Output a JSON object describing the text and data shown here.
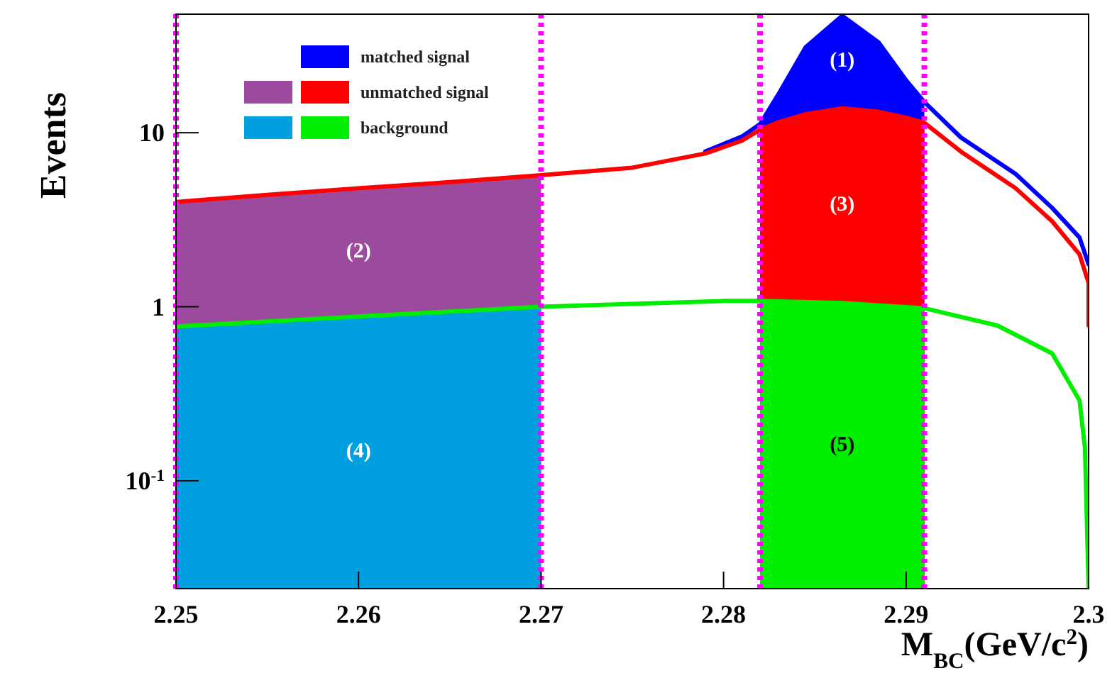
{
  "chart_data": {
    "type": "line",
    "xlabel": "M$_{BC}$(GeV/c$^{2}$)",
    "ylabel": "Events",
    "log": "y",
    "xlim": [
      2.25,
      2.3
    ],
    "ylim": [
      0.024,
      48
    ],
    "xticks": [
      2.25,
      2.26,
      2.27,
      2.28,
      2.29,
      2.3
    ],
    "yticks": [
      {
        "value": 0.1,
        "label": "10$^{-1}$"
      },
      1,
      10
    ],
    "legend": "top left",
    "series": [
      {
        "type": "area",
        "name": "matched signal",
        "color": "#0000ff",
        "x": [
          2.282,
          2.283,
          2.2845,
          2.2865,
          2.2885,
          2.29,
          2.291
        ],
        "values": [
          11.2,
          16.6,
          31,
          47,
          33,
          20,
          15
        ]
      },
      {
        "type": "area",
        "color": "#9b4a9e",
        "x": [
          2.25,
          2.255,
          2.26,
          2.265,
          2.27
        ],
        "values": [
          4.0,
          4.4,
          4.8,
          5.2,
          5.7
        ]
      },
      {
        "type": "area",
        "name": "unmatched signal",
        "color": "#ff0000",
        "x": [
          2.282,
          2.283,
          2.2845,
          2.2865,
          2.2885,
          2.29,
          2.291
        ],
        "values": [
          10.4,
          11.5,
          12.8,
          13.8,
          13.2,
          12.2,
          11.4
        ]
      },
      {
        "type": "area",
        "color": "#00a0e0",
        "x": [
          2.25,
          2.255,
          2.26,
          2.265,
          2.27
        ],
        "values": [
          0.77,
          0.82,
          0.88,
          0.94,
          1.0
        ]
      },
      {
        "type": "area",
        "name": "background",
        "color": "#00ee00",
        "x": [
          2.282,
          2.283,
          2.2845,
          2.2865,
          2.2885,
          2.29,
          2.291
        ],
        "values": [
          1.08,
          1.08,
          1.07,
          1.05,
          1.02,
          1.0,
          0.98
        ]
      },
      {
        "color": "#0000ff",
        "x": [
          2.279,
          2.281,
          2.282,
          2.283,
          2.2845,
          2.2865,
          2.2885,
          2.29,
          2.291,
          2.293,
          2.296,
          2.298,
          2.2995,
          2.3
        ],
        "values": [
          7.8,
          9.5,
          11.2,
          16.6,
          31,
          47,
          33,
          20,
          15,
          9.4,
          5.8,
          3.7,
          2.5,
          1.75
        ]
      },
      {
        "color": "#ff0000",
        "x": [
          2.25,
          2.255,
          2.26,
          2.265,
          2.27,
          2.275,
          2.279,
          2.281,
          2.282,
          2.283,
          2.2845,
          2.2865,
          2.2885,
          2.29,
          2.291,
          2.293,
          2.296,
          2.298,
          2.2995,
          2.3,
          2.3
        ],
        "values": [
          4.0,
          4.4,
          4.8,
          5.2,
          5.7,
          6.3,
          7.6,
          9.0,
          10.4,
          11.5,
          12.8,
          13.8,
          13.2,
          12.2,
          11.4,
          7.8,
          4.8,
          3.1,
          2.0,
          1.37,
          0.78
        ]
      },
      {
        "color": "#00ee00",
        "x": [
          2.25,
          2.26,
          2.27,
          2.28,
          2.282,
          2.2865,
          2.291,
          2.295,
          2.298,
          2.2995,
          2.2998,
          2.3
        ],
        "values": [
          0.77,
          0.88,
          1.0,
          1.08,
          1.08,
          1.05,
          0.98,
          0.78,
          0.54,
          0.29,
          0.154,
          0.024
        ]
      }
    ],
    "ref_lines": [
      {
        "axis": "x",
        "value": 2.25,
        "color": "#ff00ff",
        "line_style": "dotted"
      },
      {
        "axis": "x",
        "value": 2.27,
        "color": "#ff00ff",
        "line_style": "dotted"
      },
      {
        "axis": "x",
        "value": 2.282,
        "color": "#ff00ff",
        "line_style": "dotted"
      },
      {
        "axis": "x",
        "value": 2.291,
        "color": "#ff00ff",
        "line_style": "dotted"
      }
    ],
    "annotations": [
      "(1)",
      "(2)",
      "(3)",
      "(4)",
      "(5)"
    ]
  }
}
